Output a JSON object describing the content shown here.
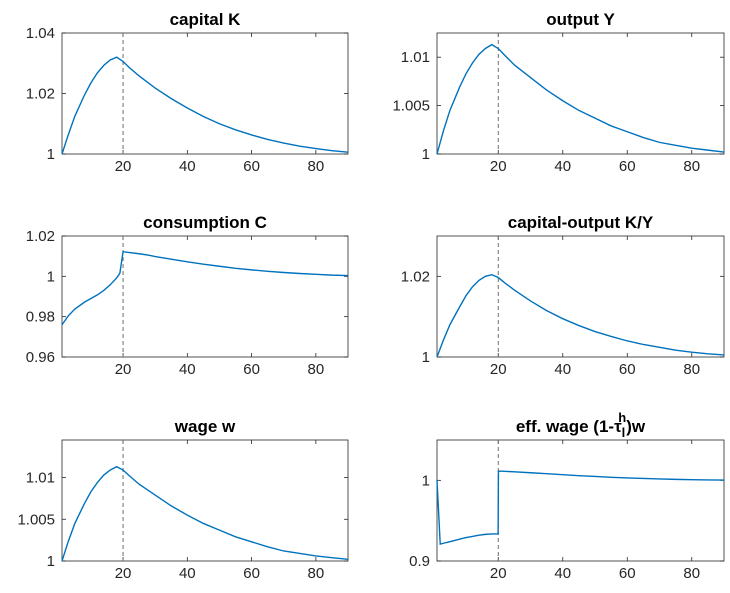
{
  "colors": {
    "line": "#0072BD",
    "vline": "#6e6e6e"
  },
  "chart_data": [
    {
      "type": "line",
      "title": "capital K",
      "xlim": [
        1,
        90
      ],
      "ylim": [
        1,
        1.04
      ],
      "xticks": [
        20,
        40,
        60,
        80
      ],
      "xtick_labels": [
        "20",
        "40",
        "60",
        "80"
      ],
      "yticks": [
        1,
        1.02,
        1.04
      ],
      "ytick_labels": [
        "1",
        "1.02",
        "1.04"
      ],
      "vline_x": 20,
      "series": [
        {
          "x": [
            1,
            3,
            5,
            8,
            10,
            12,
            14,
            16,
            18,
            20,
            22,
            25,
            30,
            35,
            40,
            45,
            50,
            55,
            60,
            65,
            70,
            75,
            80,
            85,
            90
          ],
          "y": [
            1.0,
            1.0065,
            1.0125,
            1.0195,
            1.0235,
            1.0268,
            1.0293,
            1.0311,
            1.032,
            1.0306,
            1.0285,
            1.0258,
            1.0218,
            1.0183,
            1.0152,
            1.0124,
            1.01,
            1.008,
            1.0063,
            1.0048,
            1.0036,
            1.0026,
            1.0018,
            1.0011,
            1.0006
          ]
        }
      ]
    },
    {
      "type": "line",
      "title": "output Y",
      "xlim": [
        1,
        90
      ],
      "ylim": [
        1,
        1.0125
      ],
      "xticks": [
        20,
        40,
        60,
        80
      ],
      "xtick_labels": [
        "20",
        "40",
        "60",
        "80"
      ],
      "yticks": [
        1,
        1.005,
        1.01
      ],
      "ytick_labels": [
        "1",
        "1.005",
        "1.01"
      ],
      "vline_x": 20,
      "series": [
        {
          "x": [
            1,
            3,
            5,
            8,
            10,
            12,
            14,
            16,
            18,
            20,
            22,
            25,
            30,
            35,
            40,
            45,
            50,
            55,
            60,
            65,
            70,
            75,
            80,
            85,
            90
          ],
          "y": [
            1.0,
            1.0024,
            1.0045,
            1.0069,
            1.0083,
            1.0094,
            1.0103,
            1.0109,
            1.0113,
            1.0109,
            1.0102,
            1.0092,
            1.0079,
            1.0066,
            1.0055,
            1.0045,
            1.0037,
            1.0029,
            1.0023,
            1.0017,
            1.0012,
            1.0009,
            1.0006,
            1.0004,
            1.0002
          ]
        }
      ]
    },
    {
      "type": "line",
      "title": "consumption C",
      "xlim": [
        1,
        90
      ],
      "ylim": [
        0.96,
        1.02
      ],
      "xticks": [
        20,
        40,
        60,
        80
      ],
      "xtick_labels": [
        "20",
        "40",
        "60",
        "80"
      ],
      "yticks": [
        0.96,
        0.98,
        1,
        1.02
      ],
      "ytick_labels": [
        "0.96",
        "0.98",
        "1",
        "1.02"
      ],
      "vline_x": 20,
      "series": [
        {
          "x": [
            1,
            3,
            5,
            8,
            10,
            12,
            14,
            16,
            18,
            19,
            20,
            22,
            25,
            28,
            30,
            35,
            40,
            45,
            50,
            55,
            60,
            65,
            70,
            75,
            80,
            85,
            90
          ],
          "y": [
            0.976,
            0.9805,
            0.9838,
            0.9872,
            0.989,
            0.9908,
            0.993,
            0.9958,
            0.9992,
            1.0015,
            1.0122,
            1.0118,
            1.0112,
            1.0105,
            1.0098,
            1.0085,
            1.0072,
            1.006,
            1.005,
            1.004,
            1.0032,
            1.0025,
            1.0019,
            1.0014,
            1.001,
            1.0006,
            1.0004
          ]
        }
      ]
    },
    {
      "type": "line",
      "title": "capital-output K/Y",
      "xlim": [
        1,
        90
      ],
      "ylim": [
        1,
        1.03
      ],
      "xticks": [
        20,
        40,
        60,
        80
      ],
      "xtick_labels": [
        "20",
        "40",
        "60",
        "80"
      ],
      "yticks": [
        1,
        1.02
      ],
      "ytick_labels": [
        "1",
        "1.02"
      ],
      "vline_x": 20,
      "series": [
        {
          "x": [
            1,
            3,
            5,
            8,
            10,
            12,
            14,
            16,
            18,
            20,
            22,
            25,
            30,
            35,
            40,
            45,
            50,
            55,
            60,
            65,
            70,
            75,
            80,
            85,
            90
          ],
          "y": [
            1.0,
            1.0042,
            1.008,
            1.0124,
            1.0152,
            1.0174,
            1.019,
            1.02,
            1.0204,
            1.0197,
            1.0184,
            1.0166,
            1.0139,
            1.0115,
            1.0095,
            1.0078,
            1.0063,
            1.0051,
            1.004,
            1.0031,
            1.0024,
            1.0017,
            1.0012,
            1.0008,
            1.0005
          ]
        }
      ]
    },
    {
      "type": "line",
      "title": "wage w",
      "xlim": [
        1,
        90
      ],
      "ylim": [
        1,
        1.0145
      ],
      "xticks": [
        20,
        40,
        60,
        80
      ],
      "xtick_labels": [
        "20",
        "40",
        "60",
        "80"
      ],
      "yticks": [
        1,
        1.005,
        1.01
      ],
      "ytick_labels": [
        "1",
        "1.005",
        "1.01"
      ],
      "vline_x": 20,
      "series": [
        {
          "x": [
            1,
            3,
            5,
            8,
            10,
            12,
            14,
            16,
            18,
            20,
            22,
            25,
            30,
            35,
            40,
            45,
            50,
            55,
            60,
            65,
            70,
            75,
            80,
            85,
            90
          ],
          "y": [
            1.0,
            1.0024,
            1.0045,
            1.0069,
            1.0083,
            1.0094,
            1.0103,
            1.0109,
            1.0113,
            1.0109,
            1.0102,
            1.0092,
            1.0079,
            1.0066,
            1.0055,
            1.0045,
            1.0037,
            1.0029,
            1.0023,
            1.0017,
            1.0012,
            1.0009,
            1.0006,
            1.0004,
            1.0002
          ]
        }
      ]
    },
    {
      "type": "line",
      "title": "eff. wage (1-τ",
      "title_sub": "l",
      "title_sup": "h",
      "title_end": ")w",
      "xlim": [
        1,
        90
      ],
      "ylim": [
        0.9,
        1.05
      ],
      "xticks": [
        20,
        40,
        60,
        80
      ],
      "xtick_labels": [
        "20",
        "40",
        "60",
        "80"
      ],
      "yticks": [
        0.9,
        1
      ],
      "ytick_labels": [
        "0.9",
        "1"
      ],
      "vline_x": 20,
      "series": [
        {
          "x": [
            1,
            2,
            3,
            5,
            8,
            10,
            12,
            14,
            16,
            18,
            19.95,
            20.05,
            22,
            25,
            30,
            35,
            40,
            45,
            50,
            55,
            60,
            65,
            70,
            75,
            80,
            85,
            90
          ],
          "y": [
            1.0,
            0.921,
            0.922,
            0.924,
            0.927,
            0.929,
            0.9305,
            0.932,
            0.933,
            0.9335,
            0.9335,
            1.0115,
            1.0112,
            1.0105,
            1.0094,
            1.0082,
            1.007,
            1.0058,
            1.0048,
            1.0038,
            1.003,
            1.0023,
            1.0017,
            1.0012,
            1.0008,
            1.0005,
            1.0003
          ]
        }
      ]
    }
  ]
}
